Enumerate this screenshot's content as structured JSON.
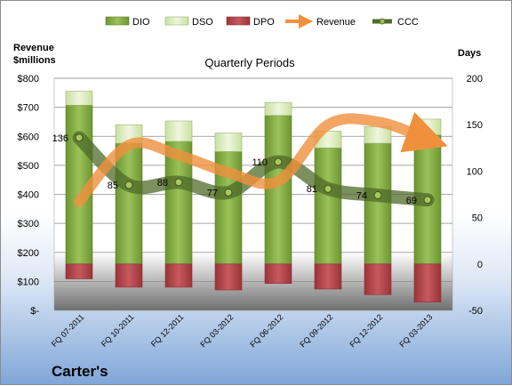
{
  "company": "Carter's",
  "chart_data": {
    "type": "bar",
    "title": "Quarterly Periods",
    "left_axis_title": [
      "Revenue",
      "$millions"
    ],
    "right_axis_title": "Days",
    "left_ylim": [
      0,
      800
    ],
    "left_ticks": [
      "$-",
      "$100",
      "$200",
      "$300",
      "$400",
      "$500",
      "$600",
      "$700",
      "$800"
    ],
    "right_ylim": [
      -50,
      200
    ],
    "right_ticks": [
      "-50",
      "0",
      "50",
      "100",
      "150",
      "200"
    ],
    "grid": true,
    "legend_position": "top",
    "categories": [
      "FQ 07-2011",
      "FQ 10-2011",
      "FQ 12-2011",
      "FQ 03-2012",
      "FQ 06-2012",
      "FQ 09-2012",
      "FQ 12-2012",
      "FQ 03-2013"
    ],
    "series": [
      {
        "name": "DIO",
        "kind": "bar",
        "axis": "days",
        "color": "#7ea63c",
        "values": [
          171,
          130,
          132,
          121,
          160,
          125,
          130,
          139
        ]
      },
      {
        "name": "DSO",
        "kind": "bar",
        "axis": "days",
        "color": "#dcecc0",
        "values": [
          15,
          20,
          22,
          20,
          14,
          18,
          18,
          17
        ]
      },
      {
        "name": "DPO",
        "kind": "bar",
        "axis": "days",
        "color": "#b4454a",
        "values": [
          -16,
          -25,
          -25,
          -28,
          -21,
          -27,
          -33,
          -41
        ]
      },
      {
        "name": "Revenue",
        "kind": "line",
        "axis": "money",
        "color": "#f0903c",
        "values": [
          375,
          570,
          535,
          475,
          445,
          640,
          650,
          590
        ]
      },
      {
        "name": "CCC",
        "kind": "line",
        "axis": "days",
        "color": "#4f6a2a",
        "values": [
          136,
          85,
          88,
          77,
          110,
          81,
          74,
          69
        ],
        "labels": [
          "136",
          "85",
          "88",
          "77",
          "110",
          "81",
          "74",
          "69"
        ]
      }
    ]
  }
}
